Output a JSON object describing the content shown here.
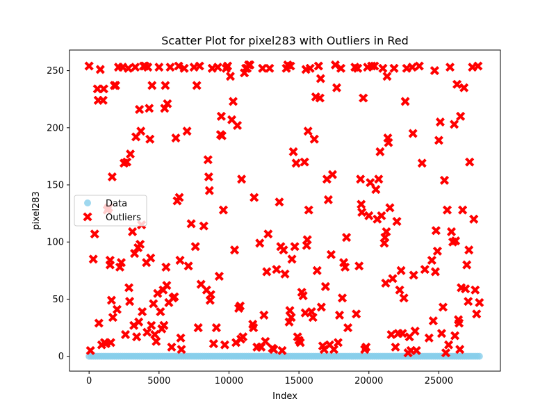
{
  "chart_data": {
    "type": "scatter",
    "title": "Scatter Plot for pixel283 with Outliers in Red",
    "xlabel": "Index",
    "ylabel": "pixel283",
    "xlim": [
      -1400,
      29400
    ],
    "ylim": [
      -13,
      268
    ],
    "xticks": [
      0,
      5000,
      10000,
      15000,
      20000,
      25000
    ],
    "yticks": [
      0,
      50,
      100,
      150,
      200,
      250
    ],
    "grid": false,
    "legend_position": "center-left",
    "legend": [
      "Data",
      "Outliers"
    ],
    "series": [
      {
        "name": "Data",
        "marker": "circle",
        "color": "#87ceeb",
        "baseline": {
          "x_start": 0,
          "x_end": 28000,
          "y": 0
        }
      },
      {
        "name": "Outliers",
        "marker": "x",
        "color": "#ff0000",
        "points": [
          [
            0,
            254
          ],
          [
            100,
            5
          ],
          [
            300,
            85
          ],
          [
            400,
            107
          ],
          [
            600,
            234
          ],
          [
            650,
            224
          ],
          [
            700,
            29
          ],
          [
            800,
            251
          ],
          [
            900,
            10
          ],
          [
            1000,
            224
          ],
          [
            1050,
            234
          ],
          [
            1100,
            12
          ],
          [
            1200,
            11
          ],
          [
            1300,
            128
          ],
          [
            1400,
            130
          ],
          [
            1500,
            80
          ],
          [
            1500,
            84
          ],
          [
            1550,
            12
          ],
          [
            1600,
            49
          ],
          [
            1650,
            157
          ],
          [
            1700,
            34
          ],
          [
            1800,
            237
          ],
          [
            1900,
            237
          ],
          [
            2000,
            41
          ],
          [
            2100,
            253
          ],
          [
            2200,
            78
          ],
          [
            2300,
            82
          ],
          [
            2400,
            253
          ],
          [
            2500,
            169
          ],
          [
            2600,
            19
          ],
          [
            2700,
            170
          ],
          [
            2800,
            252
          ],
          [
            2850,
            60
          ],
          [
            2900,
            48
          ],
          [
            2950,
            177
          ],
          [
            3100,
            109
          ],
          [
            3200,
            27
          ],
          [
            3250,
            90
          ],
          [
            3300,
            253
          ],
          [
            3350,
            192
          ],
          [
            3400,
            17
          ],
          [
            3500,
            95
          ],
          [
            3550,
            30
          ],
          [
            3600,
            216
          ],
          [
            3650,
            98
          ],
          [
            3700,
            197
          ],
          [
            3750,
            115
          ],
          [
            3800,
            39
          ],
          [
            3900,
            254
          ],
          [
            4000,
            254
          ],
          [
            4100,
            82
          ],
          [
            4150,
            21
          ],
          [
            4200,
            253
          ],
          [
            4300,
            217
          ],
          [
            4350,
            190
          ],
          [
            4400,
            86
          ],
          [
            4450,
            27
          ],
          [
            4500,
            237
          ],
          [
            4600,
            46
          ],
          [
            4700,
            19
          ],
          [
            4800,
            13
          ],
          [
            4900,
            55
          ],
          [
            5000,
            253
          ],
          [
            5100,
            39
          ],
          [
            5200,
            24
          ],
          [
            5300,
            58
          ],
          [
            5350,
            27
          ],
          [
            5400,
            217
          ],
          [
            5450,
            237
          ],
          [
            5500,
            78
          ],
          [
            5550,
            62
          ],
          [
            5600,
            221
          ],
          [
            5700,
            47
          ],
          [
            5800,
            253
          ],
          [
            5900,
            8
          ],
          [
            6000,
            51
          ],
          [
            6100,
            52
          ],
          [
            6200,
            191
          ],
          [
            6300,
            136
          ],
          [
            6400,
            254
          ],
          [
            6450,
            139
          ],
          [
            6500,
            84
          ],
          [
            6550,
            16
          ],
          [
            6600,
            6
          ],
          [
            6800,
            252
          ],
          [
            7000,
            197
          ],
          [
            7100,
            79
          ],
          [
            7300,
            116
          ],
          [
            7500,
            253
          ],
          [
            7600,
            96
          ],
          [
            7700,
            237
          ],
          [
            7800,
            25
          ],
          [
            7900,
            254
          ],
          [
            8000,
            63
          ],
          [
            8200,
            114
          ],
          [
            8400,
            58
          ],
          [
            8500,
            172
          ],
          [
            8550,
            157
          ],
          [
            8600,
            145
          ],
          [
            8650,
            49
          ],
          [
            8700,
            54
          ],
          [
            8800,
            252
          ],
          [
            8900,
            11
          ],
          [
            9100,
            25
          ],
          [
            9200,
            253
          ],
          [
            9300,
            70
          ],
          [
            9400,
            194
          ],
          [
            9450,
            210
          ],
          [
            9500,
            193
          ],
          [
            9600,
            128
          ],
          [
            9700,
            10
          ],
          [
            9800,
            252
          ],
          [
            9900,
            254
          ],
          [
            10100,
            245
          ],
          [
            10200,
            207
          ],
          [
            10300,
            223
          ],
          [
            10400,
            93
          ],
          [
            10500,
            12
          ],
          [
            10600,
            202
          ],
          [
            10700,
            42
          ],
          [
            10800,
            44
          ],
          [
            10850,
            15
          ],
          [
            10900,
            155
          ],
          [
            11000,
            17
          ],
          [
            11100,
            248
          ],
          [
            11200,
            252
          ],
          [
            11300,
            252
          ],
          [
            11400,
            255
          ],
          [
            11500,
            255
          ],
          [
            11700,
            28
          ],
          [
            11750,
            25
          ],
          [
            11800,
            139
          ],
          [
            12000,
            8
          ],
          [
            12200,
            99
          ],
          [
            12300,
            8
          ],
          [
            12400,
            252
          ],
          [
            12500,
            36
          ],
          [
            12600,
            13
          ],
          [
            12700,
            74
          ],
          [
            12800,
            107
          ],
          [
            12900,
            252
          ],
          [
            13100,
            7
          ],
          [
            13200,
            6
          ],
          [
            13400,
            76
          ],
          [
            13600,
            135
          ],
          [
            13700,
            96
          ],
          [
            13800,
            5
          ],
          [
            13900,
            93
          ],
          [
            14000,
            72
          ],
          [
            14100,
            252
          ],
          [
            14200,
            255
          ],
          [
            14300,
            30
          ],
          [
            14350,
            40
          ],
          [
            14400,
            254
          ],
          [
            14450,
            34
          ],
          [
            14500,
            85
          ],
          [
            14600,
            179
          ],
          [
            14700,
            96
          ],
          [
            14800,
            169
          ],
          [
            14900,
            17
          ],
          [
            15000,
            14
          ],
          [
            15100,
            12
          ],
          [
            15200,
            56
          ],
          [
            15300,
            53
          ],
          [
            15400,
            170
          ],
          [
            15450,
            38
          ],
          [
            15500,
            251
          ],
          [
            15550,
            97
          ],
          [
            15600,
            102
          ],
          [
            15650,
            197
          ],
          [
            15700,
            128
          ],
          [
            15800,
            252
          ],
          [
            15900,
            39
          ],
          [
            16000,
            34
          ],
          [
            16100,
            190
          ],
          [
            16200,
            227
          ],
          [
            16300,
            75
          ],
          [
            16400,
            254
          ],
          [
            16500,
            226
          ],
          [
            16550,
            243
          ],
          [
            16600,
            43
          ],
          [
            16700,
            9
          ],
          [
            16800,
            6
          ],
          [
            16900,
            61
          ],
          [
            17000,
            155
          ],
          [
            17100,
            137
          ],
          [
            17200,
            10
          ],
          [
            17300,
            89
          ],
          [
            17400,
            159
          ],
          [
            17500,
            6
          ],
          [
            17600,
            255
          ],
          [
            17700,
            235
          ],
          [
            17800,
            12
          ],
          [
            17900,
            36
          ],
          [
            18000,
            252
          ],
          [
            18100,
            51
          ],
          [
            18200,
            82
          ],
          [
            18300,
            78
          ],
          [
            18400,
            104
          ],
          [
            18500,
            25
          ],
          [
            19000,
            253
          ],
          [
            19100,
            37
          ],
          [
            19200,
            252
          ],
          [
            19300,
            79
          ],
          [
            19400,
            155
          ],
          [
            19450,
            133
          ],
          [
            19500,
            126
          ],
          [
            19600,
            226
          ],
          [
            19700,
            6
          ],
          [
            19800,
            8
          ],
          [
            19900,
            253
          ],
          [
            20000,
            123
          ],
          [
            20100,
            152
          ],
          [
            20200,
            254
          ],
          [
            20400,
            254
          ],
          [
            20500,
            146
          ],
          [
            20600,
            120
          ],
          [
            20700,
            155
          ],
          [
            20800,
            179
          ],
          [
            20900,
            123
          ],
          [
            21000,
            252
          ],
          [
            21100,
            99
          ],
          [
            21150,
            104
          ],
          [
            21200,
            64
          ],
          [
            21250,
            109
          ],
          [
            21300,
            245
          ],
          [
            21350,
            191
          ],
          [
            21400,
            187
          ],
          [
            21500,
            130
          ],
          [
            21600,
            19
          ],
          [
            21700,
            68
          ],
          [
            21800,
            252
          ],
          [
            21900,
            8
          ],
          [
            22000,
            118
          ],
          [
            22100,
            20
          ],
          [
            22200,
            58
          ],
          [
            22300,
            75
          ],
          [
            22400,
            20
          ],
          [
            22500,
            51
          ],
          [
            22600,
            223
          ],
          [
            22700,
            252
          ],
          [
            22800,
            3
          ],
          [
            22900,
            17
          ],
          [
            23000,
            5
          ],
          [
            23100,
            253
          ],
          [
            23150,
            195
          ],
          [
            23200,
            71
          ],
          [
            23300,
            22
          ],
          [
            23400,
            5
          ],
          [
            23600,
            254
          ],
          [
            23800,
            169
          ],
          [
            24000,
            76
          ],
          [
            24300,
            16
          ],
          [
            24500,
            84
          ],
          [
            24600,
            31
          ],
          [
            24700,
            250
          ],
          [
            24750,
            74
          ],
          [
            24800,
            110
          ],
          [
            24900,
            92
          ],
          [
            25000,
            189
          ],
          [
            25100,
            205
          ],
          [
            25200,
            20
          ],
          [
            25300,
            43
          ],
          [
            25400,
            154
          ],
          [
            25500,
            3
          ],
          [
            25600,
            128
          ],
          [
            25700,
            10
          ],
          [
            25800,
            253
          ],
          [
            25900,
            109
          ],
          [
            26000,
            100
          ],
          [
            26100,
            203
          ],
          [
            26150,
            18
          ],
          [
            26200,
            101
          ],
          [
            26300,
            238
          ],
          [
            26400,
            32
          ],
          [
            26450,
            29
          ],
          [
            26500,
            6
          ],
          [
            26550,
            210
          ],
          [
            26600,
            60
          ],
          [
            26700,
            128
          ],
          [
            26800,
            235
          ],
          [
            26900,
            59
          ],
          [
            27000,
            80
          ],
          [
            27100,
            48
          ],
          [
            27150,
            93
          ],
          [
            27200,
            170
          ],
          [
            27400,
            253
          ],
          [
            27500,
            120
          ],
          [
            27600,
            58
          ],
          [
            27700,
            37
          ],
          [
            27800,
            254
          ],
          [
            27900,
            47
          ]
        ]
      }
    ]
  }
}
